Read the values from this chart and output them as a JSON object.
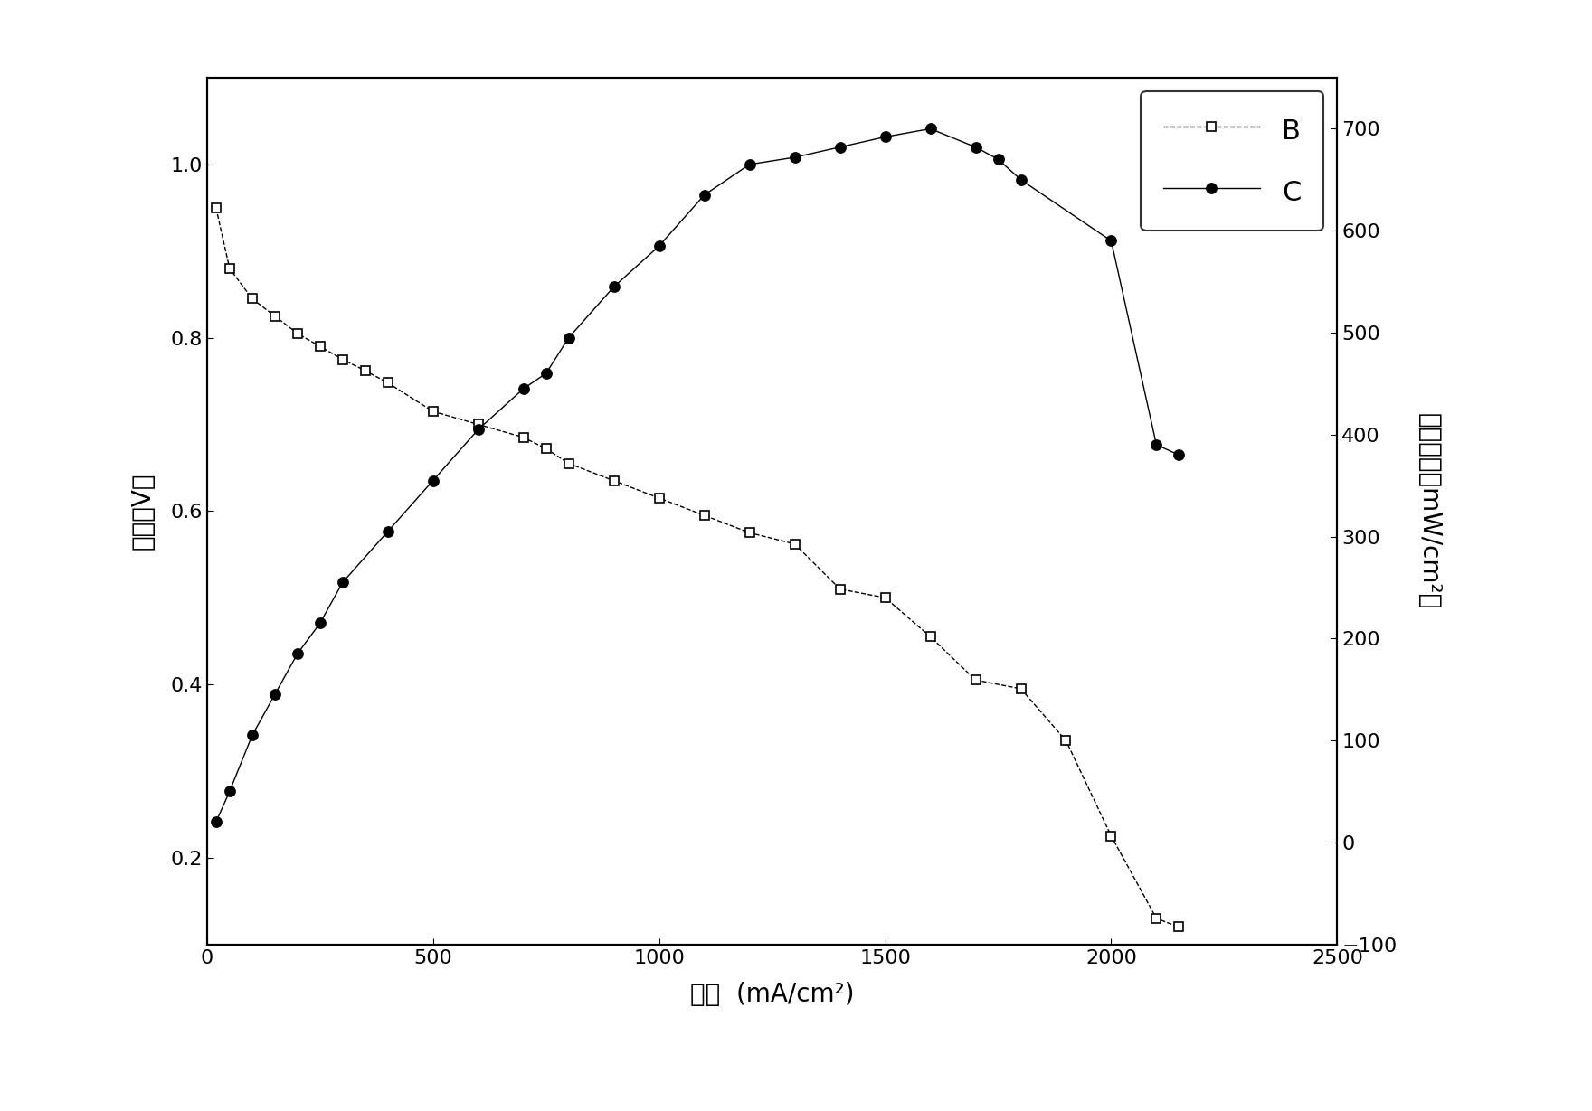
{
  "B_x": [
    20,
    50,
    100,
    150,
    200,
    250,
    300,
    350,
    400,
    500,
    600,
    700,
    750,
    800,
    900,
    1000,
    1100,
    1200,
    1300,
    1400,
    1500,
    1600,
    1700,
    1800,
    1900,
    2000,
    2100,
    2150
  ],
  "B_y": [
    0.95,
    0.88,
    0.845,
    0.825,
    0.805,
    0.79,
    0.775,
    0.762,
    0.748,
    0.715,
    0.7,
    0.685,
    0.672,
    0.655,
    0.635,
    0.615,
    0.595,
    0.575,
    0.562,
    0.51,
    0.5,
    0.455,
    0.405,
    0.395,
    0.335,
    0.225,
    0.13,
    0.12
  ],
  "C_x": [
    20,
    50,
    100,
    150,
    200,
    250,
    300,
    400,
    500,
    600,
    700,
    750,
    800,
    900,
    1000,
    1100,
    1200,
    1300,
    1400,
    1500,
    1600,
    1700,
    1750,
    1800,
    2000,
    2100,
    2150
  ],
  "C_y": [
    20,
    50,
    105,
    145,
    185,
    215,
    255,
    305,
    355,
    405,
    445,
    460,
    495,
    545,
    585,
    635,
    665,
    672,
    682,
    692,
    700,
    682,
    670,
    650,
    590,
    390,
    380
  ],
  "xlabel": "电流  (mA/cm²)",
  "ylabel": "电压（V）",
  "ylabel_right": "功率密度（mW/cm²）",
  "xlim": [
    0,
    2500
  ],
  "ylim_left": [
    0.1,
    1.1
  ],
  "ylim_right": [
    -100,
    750
  ],
  "xticks": [
    0,
    500,
    1000,
    1500,
    2000,
    2500
  ],
  "yticks_left": [
    0.2,
    0.4,
    0.6,
    0.8,
    1.0
  ],
  "yticks_right": [
    -100,
    0,
    100,
    200,
    300,
    400,
    500,
    600,
    700
  ],
  "legend_B": "B",
  "legend_C": "C",
  "line_color": "#000000",
  "bg_color": "#ffffff",
  "fig_bg_color": "#ffffff"
}
